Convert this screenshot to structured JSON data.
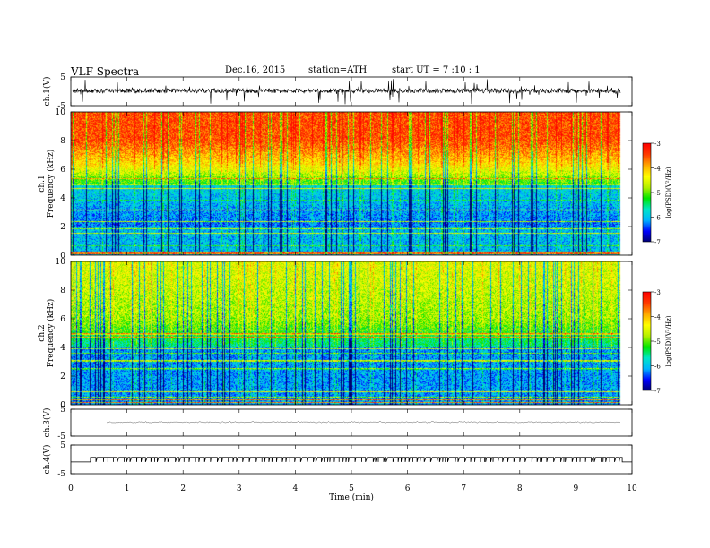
{
  "header": {
    "title": "VLF  Spectra",
    "date": "Dec.16, 2015",
    "station": "station=ATH",
    "start": "start  UT =   7  :10 : 1"
  },
  "chart_data": [
    {
      "type": "line",
      "panel": "ch1",
      "ylabel": "ch.1(V)",
      "ylim": [
        -5,
        5
      ],
      "yticks": [
        "5",
        "-5"
      ],
      "xlim": [
        0,
        10
      ]
    },
    {
      "type": "heatmap",
      "panel": "ch1-spectrogram",
      "ylabel": [
        "ch.1",
        "Frequency  (kHz)"
      ],
      "ylim": [
        0,
        10
      ],
      "yticks": [
        "0",
        "2",
        "4",
        "6",
        "8",
        "10"
      ],
      "xlim": [
        0,
        10
      ],
      "data_end_min": 9.8,
      "colorbar": {
        "label": "log(PSD)(V²/Hz)",
        "range": [
          -7,
          -3
        ],
        "ticks": [
          "-3",
          "-4",
          "-5",
          "-6",
          "-7"
        ],
        "colors": [
          "#00006e",
          "#0000ff",
          "#00b4ff",
          "#00e6c8",
          "#00e600",
          "#b4f000",
          "#ffff00",
          "#ffaa00",
          "#ff3c00",
          "#ff0000",
          "#ffffff"
        ]
      }
    },
    {
      "type": "heatmap",
      "panel": "ch2-spectrogram",
      "ylabel": [
        "ch.2",
        "Frequency  (kHz)"
      ],
      "ylim": [
        0,
        10
      ],
      "yticks": [
        "0",
        "2",
        "4",
        "6",
        "8",
        "10"
      ],
      "xlim": [
        0,
        10
      ],
      "data_end_min": 9.8,
      "colorbar": {
        "label": "log(PSD)(V²/Hz)",
        "range": [
          -7,
          -3
        ],
        "ticks": [
          "-3",
          "-4",
          "-5",
          "-6",
          "-7"
        ]
      }
    },
    {
      "type": "line",
      "panel": "ch3",
      "ylabel": "ch.3(V)",
      "ylim": [
        -5,
        5
      ],
      "yticks": [
        "5",
        "-5"
      ]
    },
    {
      "type": "line",
      "panel": "ch4",
      "ylabel": "ch.4(V)",
      "ylim": [
        -5,
        5
      ],
      "yticks": [
        "5",
        "-5"
      ],
      "xlabel": "Time  (min)",
      "xticks": [
        "0",
        "1",
        "2",
        "3",
        "4",
        "5",
        "6",
        "7",
        "8",
        "9",
        "10"
      ],
      "pulse_train": {
        "start_min": 0.35,
        "end_min": 9.8
      }
    }
  ]
}
